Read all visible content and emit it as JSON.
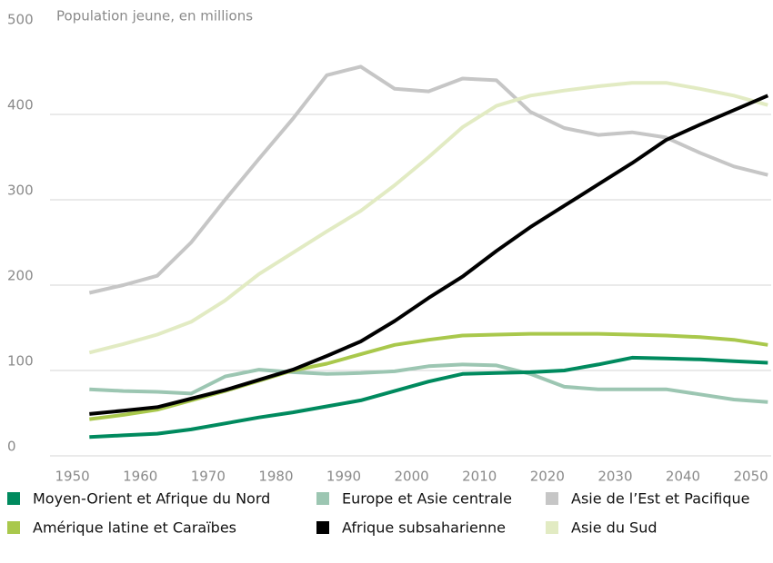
{
  "chart_data": {
    "type": "line",
    "title": "Population jeune, en millions",
    "x": [
      1952.5,
      1957.5,
      1962.5,
      1967.5,
      1972.5,
      1977.5,
      1982.5,
      1987.5,
      1992.5,
      1997.5,
      2002.5,
      2007.5,
      2012.5,
      2017.5,
      2022.5,
      2027.5,
      2032.5,
      2037.5,
      2042.5,
      2047.5,
      2052.5
    ],
    "xlim": [
      1940,
      2053
    ],
    "xticks": [
      1950,
      1960,
      1970,
      1980,
      1990,
      2000,
      2010,
      2020,
      2030,
      2040,
      2050
    ],
    "ylim": [
      0,
      500
    ],
    "yticks": [
      0,
      100,
      200,
      300,
      400,
      500
    ],
    "grid": true,
    "series": [
      {
        "name": "Moyen-Orient et Afrique du Nord",
        "color": "#008a5e",
        "values": [
          22,
          24,
          26,
          31,
          38,
          45,
          51,
          58,
          65,
          76,
          87,
          96,
          97,
          98,
          100,
          107,
          115,
          114,
          113,
          111,
          109
        ]
      },
      {
        "name": "Europe et Asie centrale",
        "color": "#9cc6b2",
        "values": [
          78,
          76,
          75,
          73,
          93,
          101,
          98,
          96,
          97,
          99,
          105,
          107,
          106,
          96,
          81,
          78,
          78,
          78,
          72,
          66,
          63
        ]
      },
      {
        "name": "Asie de l’Est et Pacifique",
        "color": "#c6c6c6",
        "values": [
          191,
          200,
          211,
          250,
          300,
          348,
          395,
          446,
          456,
          430,
          427,
          442,
          440,
          403,
          384,
          376,
          379,
          373,
          355,
          339,
          329
        ]
      },
      {
        "name": "Amérique latine et Caraïbes",
        "color": "#a9c84c",
        "values": [
          43,
          48,
          54,
          65,
          76,
          88,
          100,
          108,
          119,
          130,
          136,
          141,
          142,
          143,
          143,
          143,
          142,
          141,
          139,
          136,
          130
        ]
      },
      {
        "name": "Afrique subsaharienne",
        "color": "#000000",
        "values": [
          49,
          53,
          57,
          67,
          77,
          89,
          101,
          117,
          134,
          158,
          185,
          210,
          240,
          268,
          293,
          318,
          343,
          370,
          388,
          405,
          422
        ]
      },
      {
        "name": "Asie du Sud",
        "color": "#e2ebc3",
        "values": [
          121,
          131,
          142,
          157,
          182,
          213,
          238,
          263,
          287,
          317,
          350,
          385,
          410,
          422,
          428,
          433,
          437,
          437,
          430,
          422,
          411
        ]
      }
    ]
  }
}
